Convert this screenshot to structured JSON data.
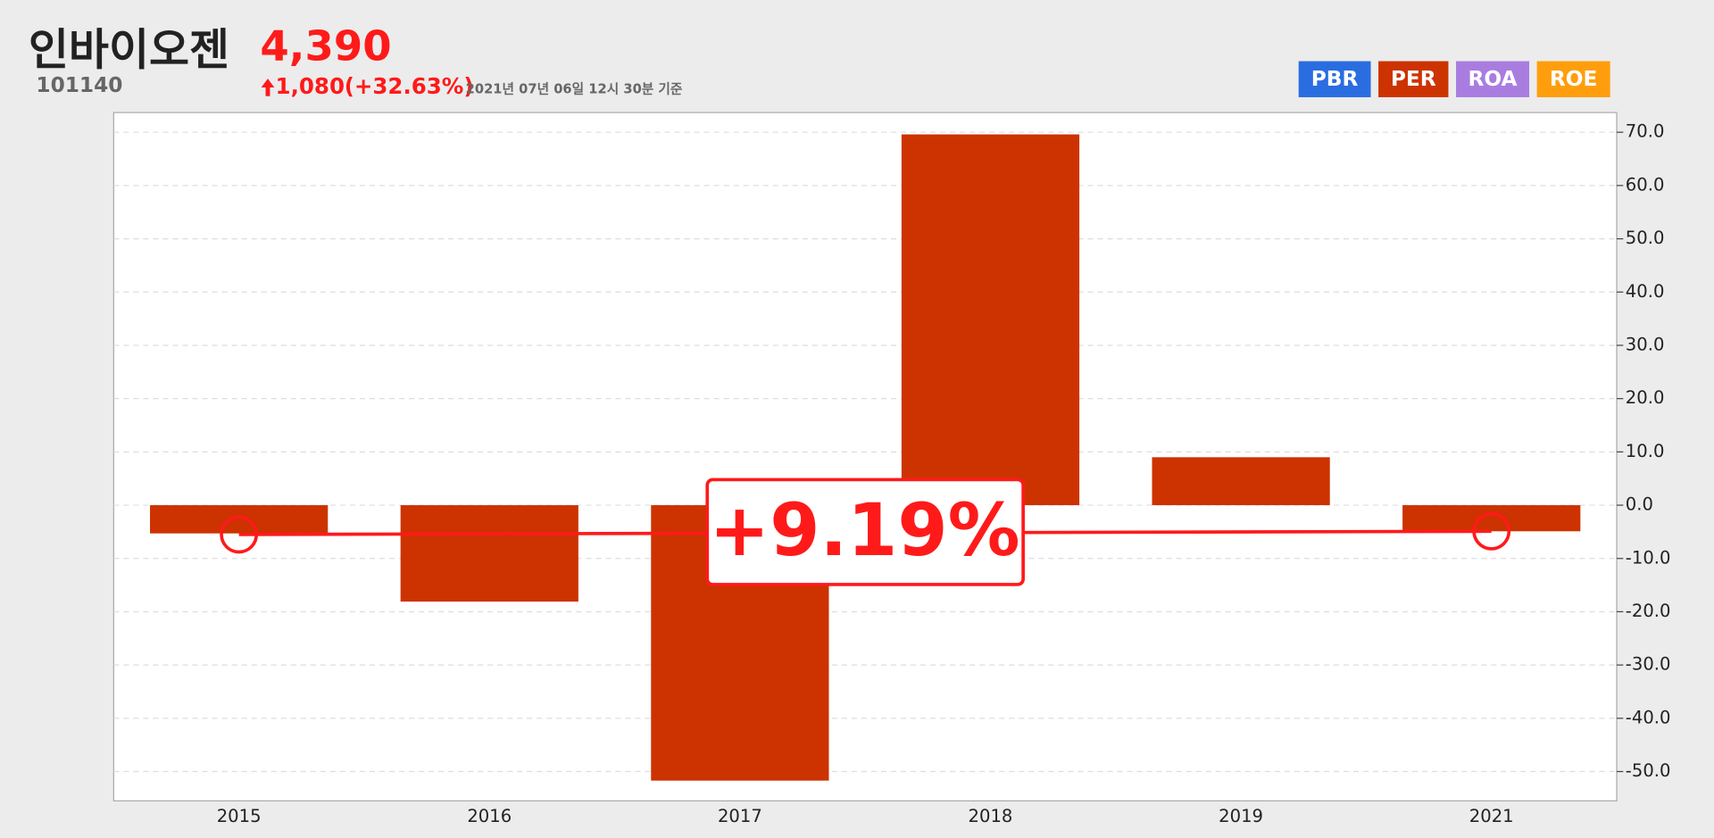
{
  "header": {
    "title": "인바이오젠",
    "code": "101140",
    "price": "4,390",
    "change": "1,080",
    "change_pct": "(+32.63%)",
    "timestamp": "2021년 07년 06일 12시 30분 기준"
  },
  "tabs": [
    {
      "label": "PBR",
      "color": "#2a6de0"
    },
    {
      "label": "PER",
      "color": "#cc3300"
    },
    {
      "label": "ROA",
      "color": "#a97de0"
    },
    {
      "label": "ROE",
      "color": "#ff9e0d"
    }
  ],
  "chart_data": {
    "type": "bar",
    "categories": [
      "2015",
      "2016",
      "2017",
      "2018",
      "2019",
      "2021"
    ],
    "values": [
      -5.3,
      -18.1,
      -51.7,
      69.6,
      9.0,
      -4.9
    ],
    "color": "#cc3300",
    "ylim": [
      -55.5,
      73.7
    ],
    "yticks": [
      {
        "value": -50,
        "label": "-50.0"
      },
      {
        "value": -40,
        "label": "-40.0"
      },
      {
        "value": -30,
        "label": "-30.0"
      },
      {
        "value": -20,
        "label": "-20.0"
      },
      {
        "value": -10,
        "label": "-10.0"
      },
      {
        "value": 0,
        "label": "0.0"
      },
      {
        "value": 10,
        "label": "10.0"
      },
      {
        "value": 20,
        "label": "20.0"
      },
      {
        "value": 30,
        "label": "30.0"
      },
      {
        "value": 40,
        "label": "40.0"
      },
      {
        "value": 50,
        "label": "50.0"
      },
      {
        "value": 60,
        "label": "60.0"
      },
      {
        "value": 70,
        "label": "70.0"
      }
    ],
    "grid": true,
    "trend_values": [
      -5.5,
      -4.9
    ],
    "trend_color": "#ff1a1a",
    "trend_label": "+9.19%"
  }
}
